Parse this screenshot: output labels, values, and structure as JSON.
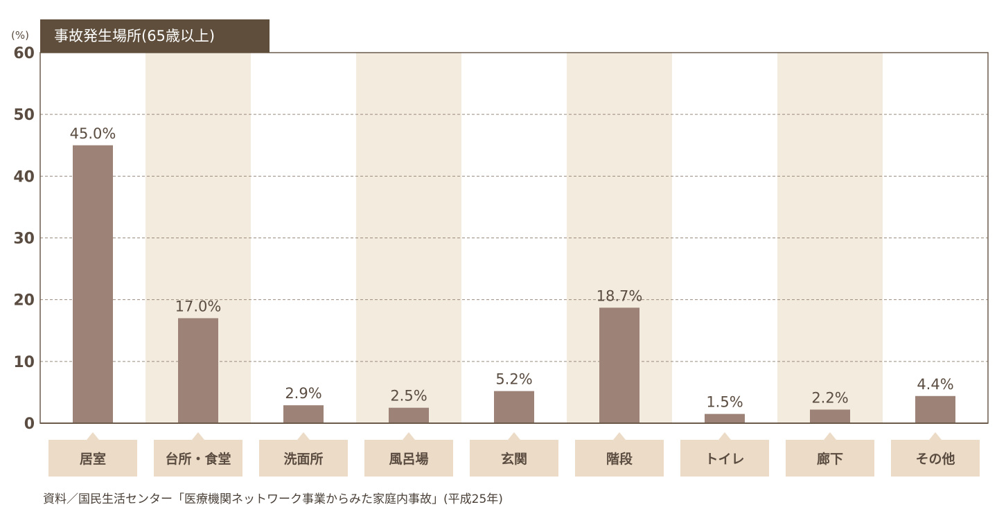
{
  "colors": {
    "bar": "#9c8277",
    "band": "#f2ebde",
    "label_box": "#ecdcc7",
    "title_bg": "#5f4e3b",
    "text": "#5a4c40",
    "grid": "#9a8a7c",
    "frame": "#6b5a4a"
  },
  "chart_data": {
    "type": "bar",
    "title": "事故発生場所(65歳以上)",
    "ylabel": "(%)",
    "ylim": [
      0,
      60
    ],
    "yticks": [
      0,
      10,
      20,
      30,
      40,
      50,
      60
    ],
    "grid": true,
    "categories": [
      "居室",
      "台所・食堂",
      "洗面所",
      "風呂場",
      "玄関",
      "階段",
      "トイレ",
      "廊下",
      "その他"
    ],
    "values": [
      45.0,
      17.0,
      2.9,
      2.5,
      5.2,
      18.7,
      1.5,
      2.2,
      4.4
    ],
    "value_labels": [
      "45.0%",
      "17.0%",
      "2.9%",
      "2.5%",
      "5.2%",
      "18.7%",
      "1.5%",
      "2.2%",
      "4.4%"
    ],
    "shaded_categories": [
      1,
      3,
      5,
      7
    ]
  },
  "source": "資料／国民生活センター「医療機関ネットワーク事業からみた家庭内事故」(平成25年)"
}
